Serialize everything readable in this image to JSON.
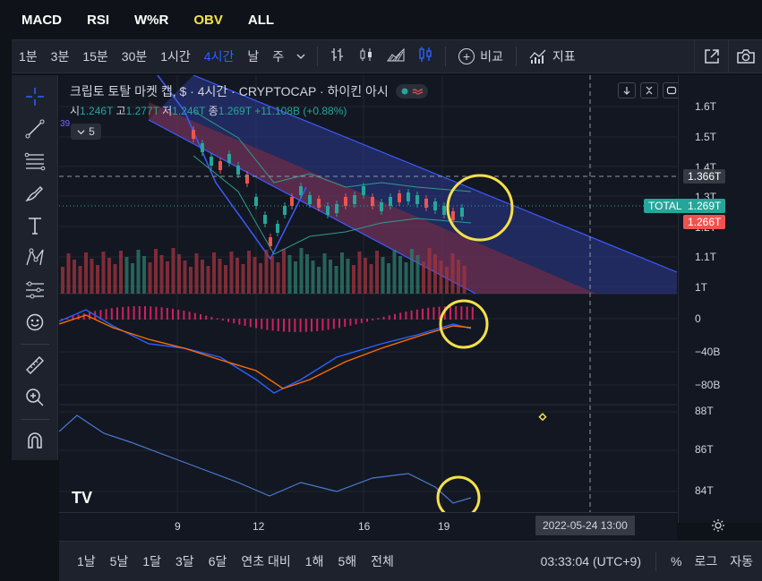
{
  "indicator_tabs": [
    {
      "label": "MACD",
      "active": false
    },
    {
      "label": "RSI",
      "active": false
    },
    {
      "label": "W%R",
      "active": false
    },
    {
      "label": "OBV",
      "active": true
    },
    {
      "label": "ALL",
      "active": false
    }
  ],
  "toolbar": {
    "timeframes": [
      "1분",
      "3분",
      "15분",
      "30분",
      "1시간",
      "4시간",
      "날",
      "주"
    ],
    "active_timeframe": "4시간",
    "compare_label": "비교",
    "indicators_label": "지표"
  },
  "legend": {
    "title": "크립토 토탈 마켓 캡, $ · 4시간 · CRYPTOCAP · 하이킨 아시",
    "open_label": "시",
    "open": "1.246T",
    "high_label": "고",
    "high": "1.277T",
    "low_label": "저",
    "low": "1.246T",
    "close_label": "종",
    "close": "1.269T",
    "change": "+11.108B (+0.88%)",
    "collapsed_count": "5",
    "top_left_value": "39"
  },
  "price_scale": {
    "main": [
      "1.6T",
      "1.5T",
      "1.4T",
      "1.3T",
      "1.2T",
      "1.1T",
      "1T"
    ],
    "crosshair_value": "1.366T",
    "symbol_tag": "TOTAL",
    "last_price": "1.269T",
    "prev_price": "1.266T",
    "macd": [
      "0",
      "−40B",
      "−80B"
    ],
    "obv": [
      "88T",
      "86T",
      "84T"
    ]
  },
  "time_axis": {
    "labels": [
      "9",
      "12",
      "16",
      "19"
    ],
    "crosshair_date": "2022-05-24   13:00"
  },
  "bottom_bar": {
    "ranges": [
      "1날",
      "5날",
      "1달",
      "3달",
      "6달",
      "연초 대비",
      "1해",
      "5해",
      "전체"
    ],
    "clock": "03:33:04 (UTC+9)",
    "percent_label": "%",
    "log_label": "로그",
    "auto_label": "자동"
  },
  "colors": {
    "accent": "#2962ff",
    "up": "#26a69a",
    "down": "#ef5350",
    "highlight": "#f5e04a",
    "macd_line": "#2962ff",
    "signal_line": "#ff6d00"
  }
}
